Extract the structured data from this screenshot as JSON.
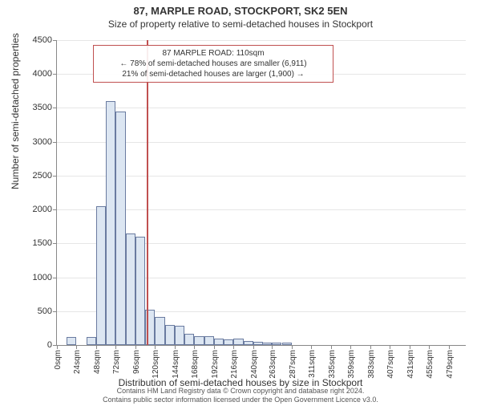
{
  "title": "87, MARPLE ROAD, STOCKPORT, SK2 5EN",
  "subtitle": "Size of property relative to semi-detached houses in Stockport",
  "ylabel": "Number of semi-detached properties",
  "xlabel": "Distribution of semi-detached houses by size in Stockport",
  "footer_line1": "Contains HM Land Registry data © Crown copyright and database right 2024.",
  "footer_line2": "Contains public sector information licensed under the Open Government Licence v3.0.",
  "annotation": {
    "line1": "87 MARPLE ROAD: 110sqm",
    "line2": "← 78% of semi-detached houses are smaller (6,911)",
    "line3": "21% of semi-detached houses are larger (1,900) →"
  },
  "chart": {
    "type": "histogram",
    "ylim": [
      0,
      4500
    ],
    "ytick_step": 500,
    "xticks": [
      0,
      24,
      48,
      72,
      96,
      120,
      144,
      168,
      192,
      216,
      240,
      263,
      287,
      311,
      335,
      359,
      383,
      407,
      431,
      455,
      479
    ],
    "xtick_suffix": "sqm",
    "marker_x": 110,
    "marker_color": "#c05050",
    "bar_fill": "#dce6f2",
    "bar_stroke": "#6a7ba0",
    "grid_color": "#e6e6e6",
    "axis_color": "#888888",
    "background": "#ffffff",
    "label_fontsize": 12,
    "tick_fontsize": 11,
    "title_fontsize": 13,
    "bars": [
      {
        "x": 24,
        "value": 120
      },
      {
        "x": 48,
        "value": 120
      },
      {
        "x": 60,
        "value": 2050
      },
      {
        "x": 72,
        "value": 3600
      },
      {
        "x": 84,
        "value": 3450
      },
      {
        "x": 96,
        "value": 1650
      },
      {
        "x": 108,
        "value": 1600
      },
      {
        "x": 120,
        "value": 520
      },
      {
        "x": 132,
        "value": 420
      },
      {
        "x": 144,
        "value": 300
      },
      {
        "x": 156,
        "value": 280
      },
      {
        "x": 168,
        "value": 170
      },
      {
        "x": 180,
        "value": 130
      },
      {
        "x": 192,
        "value": 130
      },
      {
        "x": 204,
        "value": 100
      },
      {
        "x": 216,
        "value": 80
      },
      {
        "x": 228,
        "value": 90
      },
      {
        "x": 240,
        "value": 60
      },
      {
        "x": 252,
        "value": 50
      },
      {
        "x": 263,
        "value": 40
      },
      {
        "x": 275,
        "value": 30
      },
      {
        "x": 287,
        "value": 30
      }
    ],
    "bar_width_units": 12,
    "x_domain": [
      0,
      500
    ]
  }
}
